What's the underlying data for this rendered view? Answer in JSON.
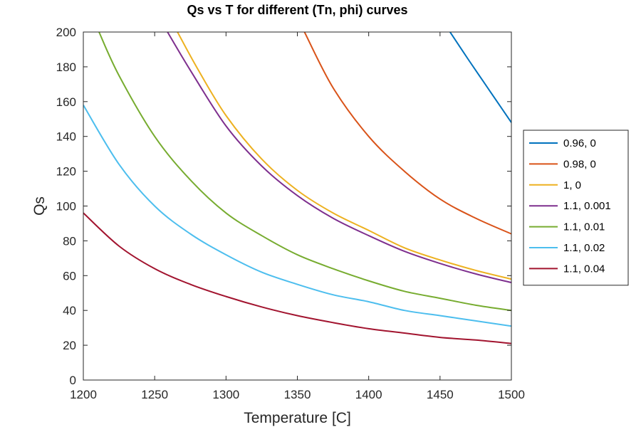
{
  "chart_data": {
    "type": "line",
    "title": "Qs vs T for different (Tn, phi) curves",
    "xlabel": "Temperature [C]",
    "ylabel": "Qs",
    "xlim": [
      1200,
      1500
    ],
    "ylim": [
      0,
      200
    ],
    "xticks": [
      1200,
      1250,
      1300,
      1350,
      1400,
      1450,
      1500
    ],
    "yticks": [
      0,
      20,
      40,
      60,
      80,
      100,
      120,
      140,
      160,
      180,
      200
    ],
    "grid": false,
    "legend_position": "outside-right",
    "series": [
      {
        "name": "0.96, 0",
        "color": "#0072BD",
        "x": [
          1457,
          1470,
          1480,
          1490,
          1500
        ],
        "y": [
          200,
          184,
          172,
          160,
          148
        ]
      },
      {
        "name": "0.98, 0",
        "color": "#D95319",
        "x": [
          1355,
          1375,
          1400,
          1425,
          1450,
          1475,
          1500
        ],
        "y": [
          200,
          168,
          140,
          120,
          104,
          93,
          84
        ]
      },
      {
        "name": "1, 0",
        "color": "#EDB120",
        "x": [
          1266,
          1280,
          1300,
          1325,
          1350,
          1375,
          1400,
          1425,
          1450,
          1475,
          1500
        ],
        "y": [
          200,
          179,
          152,
          127,
          109,
          96,
          86,
          76,
          69,
          63,
          58
        ]
      },
      {
        "name": "1.1, 0.001",
        "color": "#7E2F8E",
        "x": [
          1259,
          1275,
          1300,
          1325,
          1350,
          1375,
          1400,
          1425,
          1450,
          1475,
          1500
        ],
        "y": [
          200,
          178,
          146,
          123,
          106,
          93,
          83,
          74,
          67,
          61,
          56
        ]
      },
      {
        "name": "1.1, 0.01",
        "color": "#77AC30",
        "x": [
          1211,
          1225,
          1250,
          1275,
          1300,
          1325,
          1350,
          1375,
          1400,
          1425,
          1450,
          1475,
          1500
        ],
        "y": [
          200,
          175,
          140,
          115,
          96,
          83,
          72,
          64,
          57,
          51,
          47,
          43,
          40
        ]
      },
      {
        "name": "1.1, 0.02",
        "color": "#4DBEEE",
        "x": [
          1200,
          1225,
          1250,
          1275,
          1300,
          1325,
          1350,
          1375,
          1400,
          1425,
          1450,
          1475,
          1500
        ],
        "y": [
          158,
          124,
          100,
          84,
          72,
          62,
          55,
          49,
          45,
          40,
          37,
          34,
          31
        ]
      },
      {
        "name": "1.1, 0.04",
        "color": "#A2142F",
        "x": [
          1200,
          1225,
          1250,
          1275,
          1300,
          1325,
          1350,
          1375,
          1400,
          1425,
          1450,
          1475,
          1500
        ],
        "y": [
          96,
          77,
          64,
          55,
          48,
          42,
          37,
          33,
          29.5,
          27,
          24.5,
          23,
          21
        ]
      }
    ]
  }
}
